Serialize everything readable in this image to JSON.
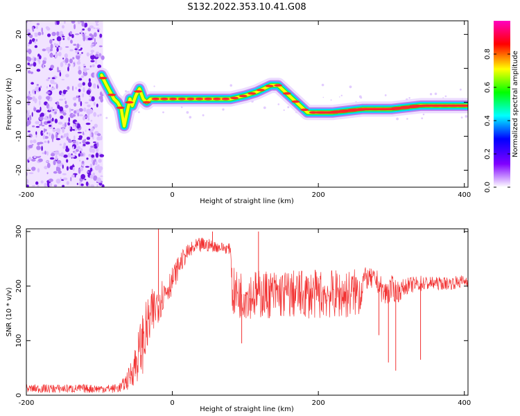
{
  "figure": {
    "title": "S132.2022.353.10.41.G08"
  },
  "chart_data": [
    {
      "type": "heatmap",
      "xlabel": "Height of straight line (km)",
      "ylabel": "Frequency (Hz)",
      "xlim": [
        -200,
        405
      ],
      "ylim": [
        -25,
        24
      ],
      "xticks": [
        -200,
        0,
        200,
        400
      ],
      "yticks": [
        20,
        10,
        0,
        -10,
        -20
      ],
      "grid": false,
      "colorbar": {
        "label": "Normalized spectral amplitude",
        "range": [
          0,
          1
        ],
        "ticks": [
          0.0,
          0.2,
          0.4,
          0.6,
          0.8
        ],
        "colormap": [
          "#ff00c0",
          "#ff0000",
          "#ffff00",
          "#00ff00",
          "#00ffff",
          "#0000ff",
          "#8000ff",
          "#ffffff"
        ]
      },
      "noise_region_x": [
        -200,
        -95
      ],
      "ridge": {
        "x": [
          -97,
          -90,
          -85,
          -80,
          -75,
          -70,
          -66,
          -62,
          -58,
          -55,
          -50,
          -45,
          -40,
          -35,
          -30,
          -20,
          0,
          20,
          40,
          60,
          80,
          100,
          115,
          125,
          135,
          145,
          160,
          175,
          185,
          200,
          220,
          260,
          300,
          340,
          380,
          405
        ],
        "y": [
          8,
          5,
          3,
          1,
          0,
          -2,
          -7,
          -3,
          1,
          -1,
          2,
          4,
          1,
          0,
          1,
          1,
          1,
          1,
          1,
          1,
          1,
          2,
          3,
          4,
          5,
          5,
          2,
          -1,
          -3,
          -3,
          -3,
          -2,
          -2,
          -1,
          -1,
          -1
        ]
      }
    },
    {
      "type": "line",
      "xlabel": "Height of straight line (km)",
      "ylabel": "SNR (10 * v/v)",
      "xlim": [
        -200,
        405
      ],
      "ylim": [
        0,
        305
      ],
      "xticks": [
        -200,
        0,
        200,
        400
      ],
      "yticks": [
        0,
        100,
        200,
        300
      ],
      "grid": false,
      "color": "#f23232",
      "x": [
        -200,
        -180,
        -160,
        -140,
        -120,
        -100,
        -80,
        -70,
        -60,
        -50,
        -40,
        -30,
        -20,
        -10,
        0,
        10,
        20,
        30,
        40,
        50,
        60,
        70,
        80,
        82,
        90,
        100,
        120,
        140,
        160,
        180,
        200,
        220,
        240,
        258,
        262,
        280,
        290,
        300,
        310,
        320,
        340,
        360,
        380,
        405
      ],
      "mid": [
        12,
        12,
        12,
        12,
        12,
        12,
        12,
        15,
        30,
        60,
        100,
        140,
        170,
        190,
        210,
        240,
        260,
        270,
        275,
        275,
        272,
        270,
        268,
        190,
        185,
        185,
        185,
        185,
        185,
        185,
        185,
        185,
        185,
        190,
        215,
        210,
        185,
        195,
        190,
        200,
        205,
        205,
        205,
        210
      ],
      "spread": [
        8,
        8,
        8,
        8,
        8,
        8,
        8,
        10,
        20,
        40,
        60,
        50,
        40,
        30,
        25,
        20,
        15,
        15,
        15,
        12,
        10,
        10,
        10,
        45,
        45,
        45,
        45,
        45,
        45,
        45,
        45,
        45,
        45,
        45,
        20,
        20,
        25,
        25,
        20,
        15,
        15,
        12,
        12,
        12
      ],
      "dips": [
        {
          "x": 95,
          "y": 95
        },
        {
          "x": 283,
          "y": 110
        },
        {
          "x": 296,
          "y": 60
        },
        {
          "x": 306,
          "y": 45
        },
        {
          "x": 340,
          "y": 65
        }
      ],
      "spikes": [
        {
          "x": -19,
          "y": 305
        },
        {
          "x": 55,
          "y": 300
        },
        {
          "x": 118,
          "y": 300
        }
      ]
    }
  ]
}
